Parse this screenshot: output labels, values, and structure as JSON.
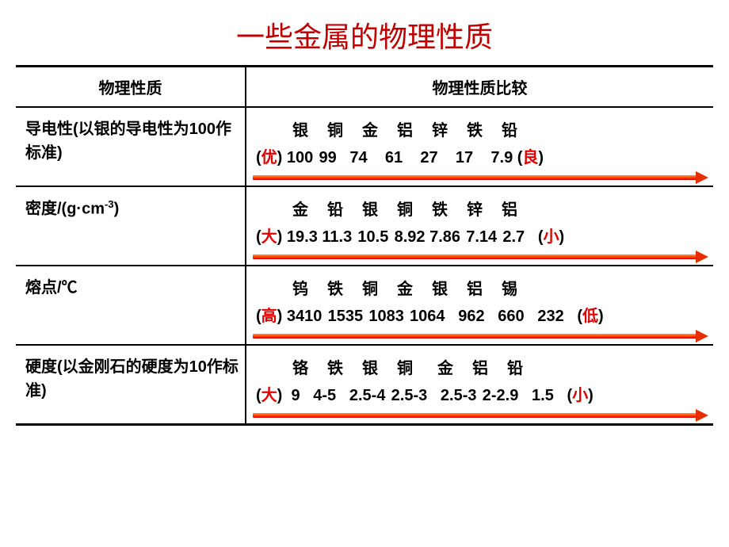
{
  "title": "一些金属的物理性质",
  "headers": {
    "left": "物理性质",
    "right": "物理性质比较"
  },
  "rows": [
    {
      "property_html": "导电性(以银的导电性为100作标准)",
      "elements": "银　铜　金　铝　锌　铁　铅",
      "left_paren": "(",
      "left_label": "优",
      "left_close": ")",
      "values": " 100  99  74  61  27  17  7.9 ",
      "right_paren": "(",
      "right_label": "良",
      "right_close": ")"
    },
    {
      "property_html": "密度/(g·cm<span class=\"sup\">-3</span>)",
      "elements": "金　铅　银　铜　铁　锌　铝",
      "left_paren": "(",
      "left_label": "大",
      "left_close": ")",
      "values": " 19.3 11.3  10.5  8.92 7.86  7.14  2.7  ",
      "right_paren": "(",
      "right_label": "小",
      "right_close": ")"
    },
    {
      "property_html": "熔点/℃",
      "elements": "钨　铁　铜　金　银　铝　锡",
      "left_paren": "(",
      "left_label": "高",
      "left_close": ")",
      "values": " 3410  1535  1083  1064  962  660  232  ",
      "right_paren": "(",
      "right_label": "低",
      "right_close": ")"
    },
    {
      "property_html": "硬度(以金刚石的硬度为10作标准)",
      "elements": "铬　铁　银　铜　 金　铝　铅",
      "left_paren": "(",
      "left_label": "大",
      "left_close": ")",
      "values": " 9  4-5   2.5-4  2.5-3  2.5-3  2-2.9  1.5  ",
      "right_paren": "(",
      "right_label": "小",
      "right_close": ")"
    }
  ],
  "colors": {
    "title": "#c00000",
    "red_label": "#e00000",
    "arrow_start": "#ff9933",
    "arrow_end": "#cc0000",
    "border": "#000000",
    "background": "#ffffff"
  }
}
